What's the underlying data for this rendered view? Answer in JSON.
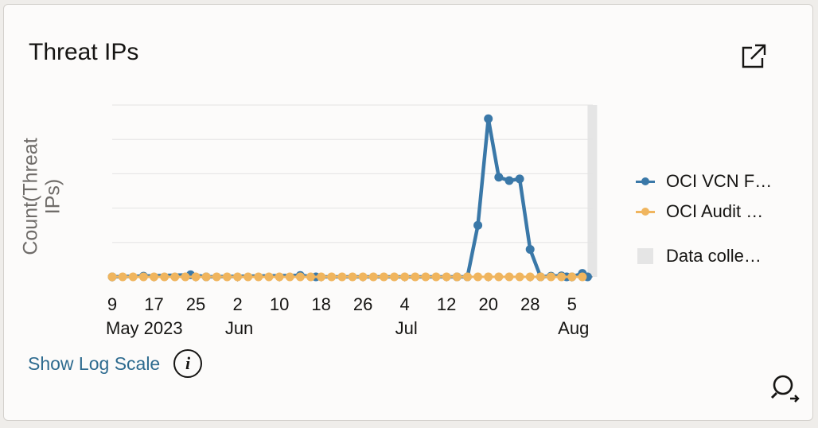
{
  "card": {
    "title": "Threat IPs",
    "show_log_scale": "Show Log Scale",
    "info_glyph": "i"
  },
  "icons": {
    "expand": "external-link-icon",
    "zoom": "zoom-search-icon",
    "info": "info-icon"
  },
  "colors": {
    "vcn": "#3a78a8",
    "audit": "#f0b55e",
    "band": "#e5e5e5",
    "link": "#2e6b8f"
  },
  "chart_data": {
    "type": "line",
    "title": "Threat IPs",
    "ylabel": "Count(Threat\nIPs)",
    "xlabel": "",
    "x": [
      "2023-05-09",
      "2023-05-12",
      "2023-05-15",
      "2023-05-18",
      "2023-05-21",
      "2023-05-24",
      "2023-05-27",
      "2023-05-30",
      "2023-06-02",
      "2023-06-05",
      "2023-06-08",
      "2023-06-11",
      "2023-06-14",
      "2023-06-17",
      "2023-06-20",
      "2023-06-23",
      "2023-06-26",
      "2023-06-29",
      "2023-07-02",
      "2023-07-05",
      "2023-07-08",
      "2023-07-11",
      "2023-07-14",
      "2023-07-17",
      "2023-07-18",
      "2023-07-20",
      "2023-07-21",
      "2023-07-22",
      "2023-07-24",
      "2023-07-26",
      "2023-07-29",
      "2023-07-31",
      "2023-08-02",
      "2023-08-05",
      "2023-08-06",
      "2023-08-07",
      "2023-08-08"
    ],
    "x_ticks": [
      {
        "date": "2023-05-09",
        "label": "9",
        "sub": "May 2023"
      },
      {
        "date": "2023-05-17",
        "label": "17",
        "sub": ""
      },
      {
        "date": "2023-05-25",
        "label": "25",
        "sub": ""
      },
      {
        "date": "2023-06-02",
        "label": "2",
        "sub": "Jun"
      },
      {
        "date": "2023-06-10",
        "label": "10",
        "sub": ""
      },
      {
        "date": "2023-06-18",
        "label": "18",
        "sub": ""
      },
      {
        "date": "2023-06-26",
        "label": "26",
        "sub": ""
      },
      {
        "date": "2023-07-04",
        "label": "4",
        "sub": "Jul"
      },
      {
        "date": "2023-07-12",
        "label": "12",
        "sub": ""
      },
      {
        "date": "2023-07-20",
        "label": "20",
        "sub": ""
      },
      {
        "date": "2023-07-28",
        "label": "28",
        "sub": ""
      },
      {
        "date": "2023-08-05",
        "label": "5",
        "sub": "Aug"
      }
    ],
    "series": [
      {
        "name": "OCI VCN F…",
        "points": [
          [
            "2023-05-09",
            0
          ],
          [
            "2023-05-15",
            0.2
          ],
          [
            "2023-05-24",
            0.6
          ],
          [
            "2023-05-27",
            0
          ],
          [
            "2023-06-14",
            0.4
          ],
          [
            "2023-06-17",
            0
          ],
          [
            "2023-07-14",
            0
          ],
          [
            "2023-07-16",
            0
          ],
          [
            "2023-07-18",
            15
          ],
          [
            "2023-07-20",
            46
          ],
          [
            "2023-07-22",
            29
          ],
          [
            "2023-07-24",
            28
          ],
          [
            "2023-07-26",
            28.5
          ],
          [
            "2023-07-28",
            8
          ],
          [
            "2023-07-30",
            0
          ],
          [
            "2023-08-01",
            0.2
          ],
          [
            "2023-08-03",
            0.3
          ],
          [
            "2023-08-04",
            0
          ],
          [
            "2023-08-05",
            0
          ],
          [
            "2023-08-07",
            1
          ],
          [
            "2023-08-08",
            0
          ]
        ]
      },
      {
        "name": "OCI Audit …",
        "points": "daily-zero"
      }
    ],
    "extra_legend": "Data colle…",
    "data_collection_band": {
      "from": "2023-08-08",
      "to": "2023-08-09"
    },
    "xlim": [
      "2023-05-09",
      "2023-08-09"
    ],
    "ylim": [
      0,
      50
    ],
    "grid": "horizontal",
    "legend": "right"
  }
}
